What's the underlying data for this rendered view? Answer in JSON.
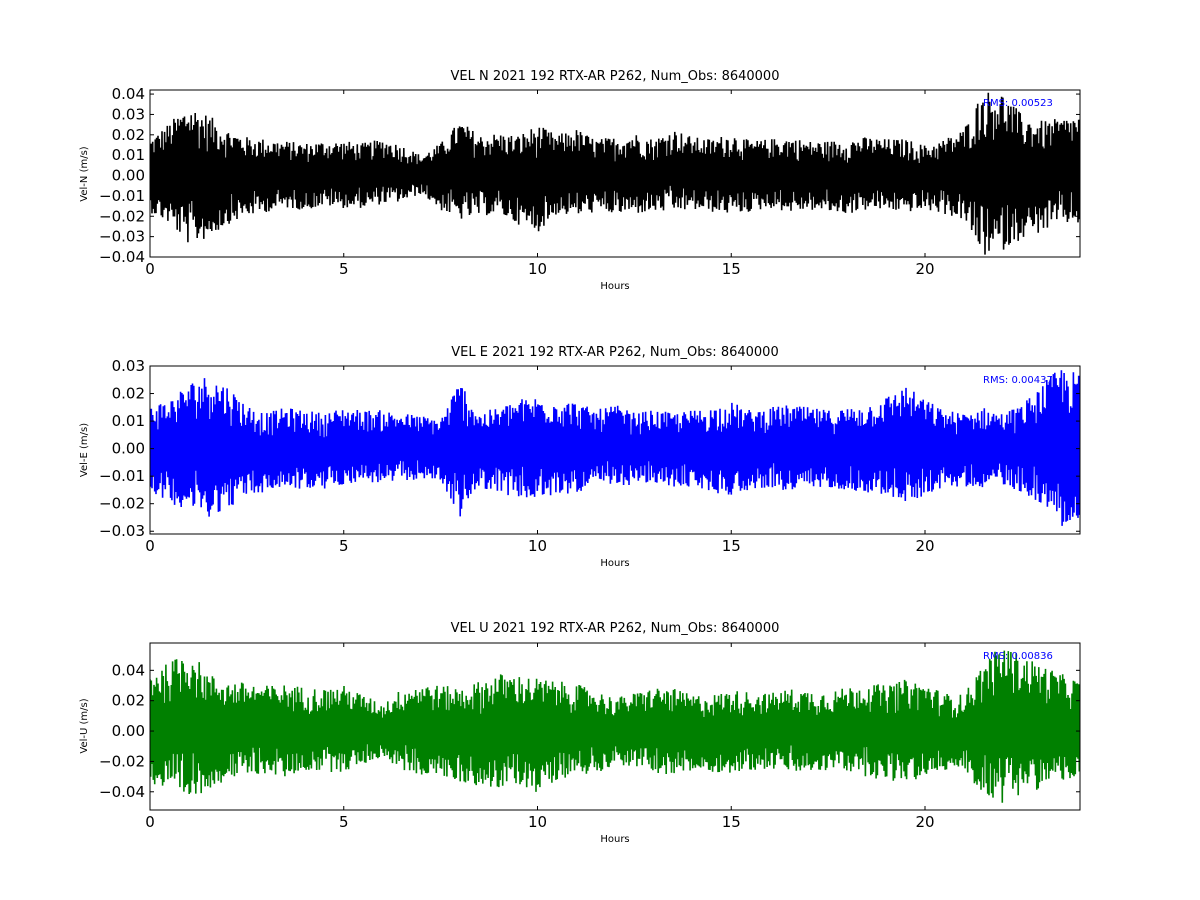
{
  "chart_data": [
    {
      "type": "line",
      "title": "VEL N 2021 192 RTX-AR  P262, Num_Obs: 8640000",
      "xlabel": "Hours",
      "ylabel": "Vel-N (m/s)",
      "xlim": [
        0,
        24
      ],
      "ylim": [
        -0.04,
        0.042
      ],
      "xticks": [
        "0",
        "5",
        "10",
        "15",
        "20"
      ],
      "yticks": [
        "−0.04",
        "−0.03",
        "−0.02",
        "−0.01",
        "0.00",
        "0.01",
        "0.02",
        "0.03",
        "0.04"
      ],
      "ytick_values": [
        -0.04,
        -0.03,
        -0.02,
        -0.01,
        0.0,
        0.01,
        0.02,
        0.03,
        0.04
      ],
      "annotation": "RMS:  0.00523",
      "rms": 0.00523,
      "series": [
        {
          "color": "#000000",
          "x": [
            0.0,
            0.5,
            1.0,
            1.5,
            2.0,
            2.5,
            3.0,
            3.5,
            4.0,
            4.5,
            5.0,
            5.5,
            6.0,
            6.5,
            7.0,
            7.5,
            8.0,
            8.5,
            9.0,
            9.5,
            10.0,
            10.5,
            11.0,
            11.5,
            12.0,
            12.5,
            13.0,
            13.5,
            14.0,
            14.5,
            15.0,
            15.5,
            16.0,
            16.5,
            17.0,
            17.5,
            18.0,
            18.5,
            19.0,
            19.5,
            20.0,
            20.5,
            21.0,
            21.5,
            22.0,
            22.5,
            23.0,
            23.5,
            24.0
          ],
          "upper": [
            0.018,
            0.026,
            0.035,
            0.03,
            0.023,
            0.019,
            0.018,
            0.017,
            0.016,
            0.017,
            0.017,
            0.016,
            0.018,
            0.015,
            0.01,
            0.016,
            0.027,
            0.02,
            0.021,
            0.02,
            0.025,
            0.02,
            0.023,
            0.018,
            0.019,
            0.021,
            0.018,
            0.023,
            0.019,
            0.018,
            0.021,
            0.017,
            0.018,
            0.019,
            0.017,
            0.017,
            0.018,
            0.019,
            0.018,
            0.018,
            0.015,
            0.018,
            0.023,
            0.042,
            0.041,
            0.03,
            0.027,
            0.028,
            0.03
          ],
          "lower": [
            -0.018,
            -0.024,
            -0.034,
            -0.031,
            -0.024,
            -0.02,
            -0.018,
            -0.016,
            -0.017,
            -0.015,
            -0.016,
            -0.016,
            -0.014,
            -0.013,
            -0.009,
            -0.017,
            -0.022,
            -0.02,
            -0.019,
            -0.024,
            -0.028,
            -0.019,
            -0.02,
            -0.018,
            -0.019,
            -0.019,
            -0.018,
            -0.018,
            -0.017,
            -0.018,
            -0.019,
            -0.018,
            -0.016,
            -0.018,
            -0.017,
            -0.018,
            -0.019,
            -0.017,
            -0.017,
            -0.018,
            -0.017,
            -0.019,
            -0.022,
            -0.04,
            -0.037,
            -0.031,
            -0.028,
            -0.024,
            -0.024
          ]
        }
      ]
    },
    {
      "type": "line",
      "title": "VEL E 2021 192 RTX-AR  P262, Num_Obs: 8640000",
      "xlabel": "Hours",
      "ylabel": "Vel-E (m/s)",
      "xlim": [
        0,
        24
      ],
      "ylim": [
        -0.031,
        0.03
      ],
      "xticks": [
        "0",
        "5",
        "10",
        "15",
        "20"
      ],
      "yticks": [
        "−0.03",
        "−0.02",
        "−0.01",
        "0.00",
        "0.01",
        "0.02",
        "0.03"
      ],
      "ytick_values": [
        -0.03,
        -0.02,
        -0.01,
        0.0,
        0.01,
        0.02,
        0.03
      ],
      "annotation": "RMS:  0.00437",
      "rms": 0.00437,
      "series": [
        {
          "color": "#0000ff",
          "x": [
            0.0,
            0.5,
            1.0,
            1.5,
            2.0,
            2.5,
            3.0,
            3.5,
            4.0,
            4.5,
            5.0,
            5.5,
            6.0,
            6.5,
            7.0,
            7.5,
            8.0,
            8.5,
            9.0,
            9.5,
            10.0,
            10.5,
            11.0,
            11.5,
            12.0,
            12.5,
            13.0,
            13.5,
            14.0,
            14.5,
            15.0,
            15.5,
            16.0,
            16.5,
            17.0,
            17.5,
            18.0,
            18.5,
            19.0,
            19.5,
            20.0,
            20.5,
            21.0,
            21.5,
            22.0,
            22.5,
            23.0,
            23.5,
            24.0
          ],
          "upper": [
            0.016,
            0.018,
            0.024,
            0.027,
            0.023,
            0.016,
            0.013,
            0.015,
            0.014,
            0.013,
            0.015,
            0.014,
            0.014,
            0.013,
            0.012,
            0.011,
            0.025,
            0.013,
            0.015,
            0.018,
            0.019,
            0.018,
            0.017,
            0.014,
            0.016,
            0.013,
            0.014,
            0.013,
            0.014,
            0.015,
            0.017,
            0.014,
            0.015,
            0.016,
            0.015,
            0.014,
            0.015,
            0.016,
            0.019,
            0.023,
            0.018,
            0.014,
            0.013,
            0.015,
            0.013,
            0.016,
            0.023,
            0.03,
            0.027
          ],
          "lower": [
            -0.015,
            -0.02,
            -0.022,
            -0.025,
            -0.022,
            -0.017,
            -0.016,
            -0.014,
            -0.015,
            -0.015,
            -0.013,
            -0.012,
            -0.013,
            -0.012,
            -0.011,
            -0.012,
            -0.025,
            -0.014,
            -0.016,
            -0.018,
            -0.019,
            -0.017,
            -0.016,
            -0.014,
            -0.014,
            -0.013,
            -0.013,
            -0.014,
            -0.014,
            -0.016,
            -0.017,
            -0.015,
            -0.014,
            -0.016,
            -0.015,
            -0.014,
            -0.015,
            -0.016,
            -0.017,
            -0.02,
            -0.017,
            -0.014,
            -0.014,
            -0.014,
            -0.013,
            -0.016,
            -0.02,
            -0.028,
            -0.029
          ]
        }
      ]
    },
    {
      "type": "line",
      "title": "VEL U 2021 192 RTX-AR  P262, Num_Obs: 8640000",
      "xlabel": "Hours",
      "ylabel": "Vel-U (m/s)",
      "xlim": [
        0,
        24
      ],
      "ylim": [
        -0.052,
        0.058
      ],
      "xticks": [
        "0",
        "5",
        "10",
        "15",
        "20"
      ],
      "yticks": [
        "−0.04",
        "−0.02",
        "0.00",
        "0.02",
        "0.04"
      ],
      "ytick_values": [
        -0.04,
        -0.02,
        0.0,
        0.02,
        0.04
      ],
      "annotation": "RMS:  0.00836",
      "rms": 0.00836,
      "series": [
        {
          "color": "#008000",
          "x": [
            0.0,
            0.5,
            1.0,
            1.5,
            2.0,
            2.5,
            3.0,
            3.5,
            4.0,
            4.5,
            5.0,
            5.5,
            6.0,
            6.5,
            7.0,
            7.5,
            8.0,
            8.5,
            9.0,
            9.5,
            10.0,
            10.5,
            11.0,
            11.5,
            12.0,
            12.5,
            13.0,
            13.5,
            14.0,
            14.5,
            15.0,
            15.5,
            16.0,
            16.5,
            17.0,
            17.5,
            18.0,
            18.5,
            19.0,
            19.5,
            20.0,
            20.5,
            21.0,
            21.5,
            22.0,
            22.5,
            23.0,
            23.5,
            24.0
          ],
          "upper": [
            0.04,
            0.045,
            0.055,
            0.038,
            0.033,
            0.032,
            0.03,
            0.031,
            0.029,
            0.028,
            0.03,
            0.024,
            0.018,
            0.028,
            0.032,
            0.03,
            0.029,
            0.033,
            0.038,
            0.037,
            0.035,
            0.033,
            0.031,
            0.027,
            0.022,
            0.025,
            0.029,
            0.028,
            0.024,
            0.024,
            0.027,
            0.026,
            0.025,
            0.028,
            0.027,
            0.026,
            0.029,
            0.032,
            0.03,
            0.034,
            0.032,
            0.025,
            0.024,
            0.045,
            0.057,
            0.05,
            0.044,
            0.038,
            0.033
          ],
          "lower": [
            -0.035,
            -0.042,
            -0.047,
            -0.038,
            -0.032,
            -0.03,
            -0.028,
            -0.031,
            -0.026,
            -0.027,
            -0.027,
            -0.022,
            -0.017,
            -0.026,
            -0.029,
            -0.03,
            -0.034,
            -0.036,
            -0.039,
            -0.035,
            -0.041,
            -0.032,
            -0.029,
            -0.028,
            -0.022,
            -0.024,
            -0.027,
            -0.03,
            -0.027,
            -0.027,
            -0.028,
            -0.026,
            -0.025,
            -0.027,
            -0.028,
            -0.026,
            -0.027,
            -0.03,
            -0.033,
            -0.034,
            -0.031,
            -0.026,
            -0.026,
            -0.042,
            -0.048,
            -0.041,
            -0.038,
            -0.033,
            -0.032
          ]
        }
      ]
    }
  ]
}
